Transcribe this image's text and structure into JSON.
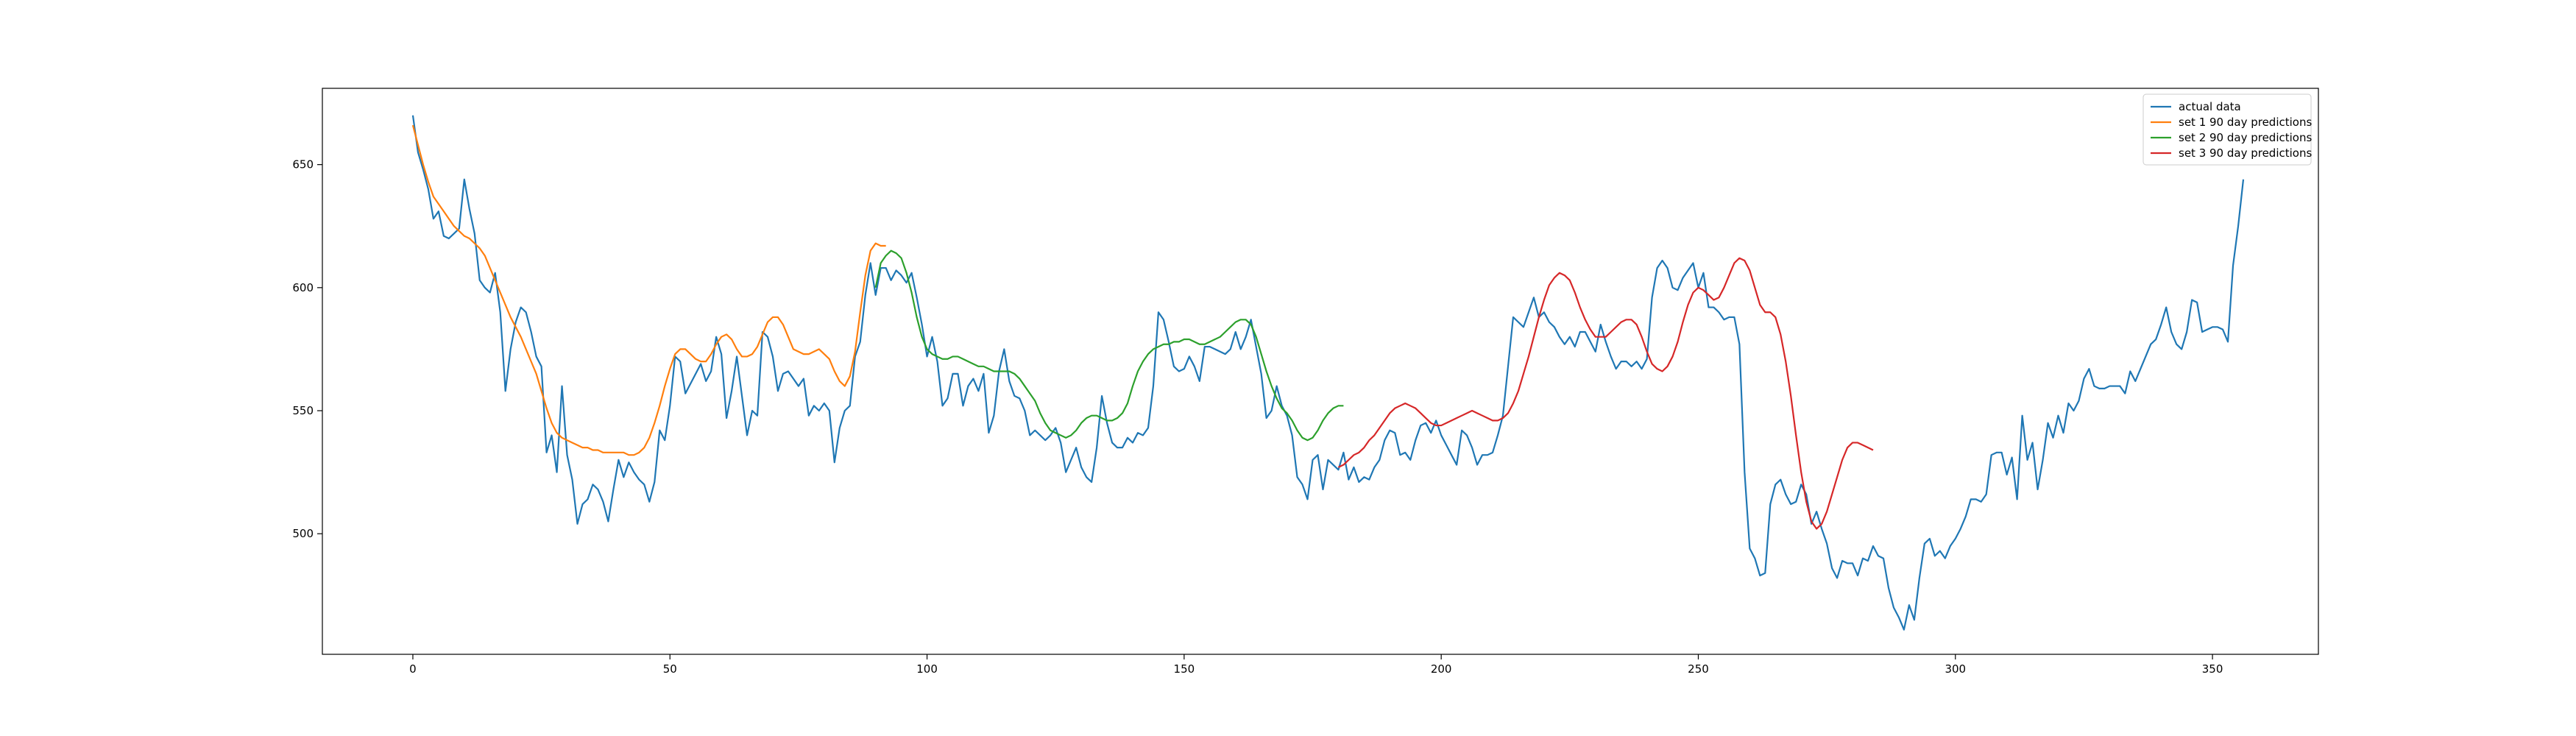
{
  "chart_data": {
    "type": "line",
    "title": "",
    "xlabel": "",
    "ylabel": "",
    "xlim": [
      -17.6,
      370.6
    ],
    "ylim": [
      451,
      681
    ],
    "xticks": [
      0,
      50,
      100,
      150,
      200,
      250,
      300,
      350
    ],
    "yticks": [
      500,
      550,
      600,
      650
    ],
    "grid": false,
    "legend_position": "top-right",
    "series": [
      {
        "name": "actual data",
        "color": "#1f77b4",
        "x_start": 0,
        "values": [
          670,
          655,
          648,
          640,
          628,
          631,
          621,
          620,
          622,
          624,
          644,
          632,
          622,
          603,
          600,
          598,
          606,
          590,
          558,
          575,
          586,
          592,
          590,
          582,
          572,
          568,
          533,
          540,
          525,
          560,
          532,
          522,
          504,
          512,
          514,
          520,
          518,
          513,
          505,
          518,
          530,
          523,
          529,
          525,
          522,
          520,
          513,
          521,
          542,
          538,
          552,
          572,
          570,
          557,
          561,
          565,
          569,
          562,
          566,
          580,
          573,
          547,
          558,
          572,
          556,
          540,
          550,
          548,
          582,
          580,
          572,
          558,
          565,
          566,
          563,
          560,
          563,
          548,
          552,
          550,
          553,
          550,
          529,
          543,
          550,
          552,
          572,
          578,
          597,
          610,
          597,
          608,
          608,
          603,
          607,
          605,
          602,
          606,
          596,
          585,
          572,
          580,
          570,
          552,
          555,
          565,
          565,
          552,
          560,
          563,
          558,
          565,
          541,
          548,
          566,
          575,
          562,
          556,
          555,
          550,
          540,
          542,
          540,
          538,
          540,
          543,
          537,
          525,
          530,
          535,
          527,
          523,
          521,
          535,
          556,
          545,
          537,
          535,
          535,
          539,
          537,
          541,
          540,
          543,
          560,
          590,
          587,
          578,
          568,
          566,
          567,
          572,
          568,
          562,
          576,
          576,
          575,
          574,
          573,
          575,
          582,
          575,
          580,
          587,
          576,
          565,
          547,
          550,
          560,
          552,
          548,
          540,
          523,
          520,
          514,
          530,
          532,
          518,
          530,
          528,
          526,
          533,
          522,
          527,
          521,
          523,
          522,
          527,
          530,
          538,
          542,
          541,
          532,
          533,
          530,
          538,
          544,
          545,
          541,
          546,
          540,
          536,
          532,
          528,
          542,
          540,
          535,
          528,
          532,
          532,
          533,
          540,
          548,
          568,
          588,
          586,
          584,
          590,
          596,
          588,
          590,
          586,
          584,
          580,
          577,
          580,
          576,
          582,
          582,
          578,
          574,
          585,
          578,
          572,
          567,
          570,
          570,
          568,
          570,
          567,
          571,
          596,
          608,
          611,
          608,
          600,
          599,
          604,
          607,
          610,
          600,
          606,
          592,
          592,
          590,
          587,
          588,
          588,
          577,
          525,
          494,
          490,
          483,
          484,
          512,
          520,
          522,
          516,
          512,
          513,
          520,
          516,
          504,
          509,
          502,
          496,
          486,
          482,
          489,
          488,
          488,
          483,
          490,
          489,
          495,
          491,
          490,
          478,
          470,
          466,
          461,
          471,
          465,
          482,
          496,
          498,
          491,
          493,
          490,
          495,
          498,
          502,
          507,
          514,
          514,
          513,
          516,
          532,
          533,
          533,
          524,
          531,
          514,
          548,
          530,
          537,
          518,
          530,
          545,
          539,
          548,
          541,
          553,
          550,
          554,
          563,
          567,
          560,
          559,
          559,
          560,
          560,
          560,
          557,
          566,
          562,
          567,
          572,
          577,
          579,
          585,
          592,
          582,
          577,
          575,
          582,
          595,
          594,
          582,
          583,
          584,
          584,
          583,
          578,
          609,
          625,
          644
        ]
      },
      {
        "name": "set 1 90 day predictions",
        "color": "#ff7f0e",
        "x_start": 0,
        "values": [
          666,
          658,
          650,
          643,
          637,
          634,
          631,
          628,
          625,
          623,
          621,
          620,
          618,
          616,
          613,
          608,
          603,
          598,
          593,
          588,
          584,
          580,
          575,
          570,
          565,
          558,
          551,
          545,
          541,
          539,
          538,
          537,
          536,
          535,
          535,
          534,
          534,
          533,
          533,
          533,
          533,
          533,
          532,
          532,
          533,
          535,
          539,
          545,
          552,
          560,
          567,
          573,
          575,
          575,
          573,
          571,
          570,
          570,
          573,
          577,
          580,
          581,
          579,
          575,
          572,
          572,
          573,
          576,
          581,
          586,
          588,
          588,
          585,
          580,
          575,
          574,
          573,
          573,
          574,
          575,
          573,
          571,
          566,
          562,
          560,
          564,
          574,
          590,
          605,
          615,
          618,
          617,
          617
        ]
      },
      {
        "name": "set 2 90 day predictions",
        "color": "#2ca02c",
        "x_start": 90,
        "values": [
          600,
          610,
          613,
          615,
          614,
          612,
          606,
          598,
          588,
          580,
          575,
          573,
          572,
          571,
          571,
          572,
          572,
          571,
          570,
          569,
          568,
          568,
          567,
          566,
          566,
          566,
          566,
          565,
          563,
          560,
          557,
          554,
          549,
          545,
          542,
          541,
          540,
          539,
          540,
          542,
          545,
          547,
          548,
          548,
          547,
          546,
          546,
          547,
          549,
          553,
          560,
          566,
          570,
          573,
          575,
          576,
          577,
          577,
          578,
          578,
          579,
          579,
          578,
          577,
          577,
          578,
          579,
          580,
          582,
          584,
          586,
          587,
          587,
          585,
          580,
          573,
          566,
          560,
          555,
          551,
          549,
          546,
          542,
          539,
          538,
          539,
          542,
          546,
          549,
          551,
          552,
          552
        ]
      },
      {
        "name": "set 3 90 day predictions",
        "color": "#d62728",
        "x_start": 180,
        "values": [
          527,
          528,
          530,
          532,
          533,
          535,
          538,
          540,
          543,
          546,
          549,
          551,
          552,
          553,
          552,
          551,
          549,
          547,
          545,
          544,
          544,
          545,
          546,
          547,
          548,
          549,
          550,
          549,
          548,
          547,
          546,
          546,
          547,
          549,
          553,
          558,
          565,
          572,
          580,
          588,
          595,
          601,
          604,
          606,
          605,
          603,
          598,
          592,
          587,
          583,
          580,
          580,
          580,
          582,
          584,
          586,
          587,
          587,
          585,
          580,
          574,
          569,
          567,
          566,
          568,
          572,
          578,
          586,
          593,
          598,
          600,
          599,
          597,
          595,
          596,
          600,
          605,
          610,
          612,
          611,
          607,
          600,
          593,
          590,
          590,
          588,
          581,
          570,
          556,
          540,
          525,
          513,
          505,
          502,
          504,
          509,
          516,
          523,
          530,
          535,
          537,
          537,
          536,
          535,
          534
        ]
      }
    ]
  }
}
